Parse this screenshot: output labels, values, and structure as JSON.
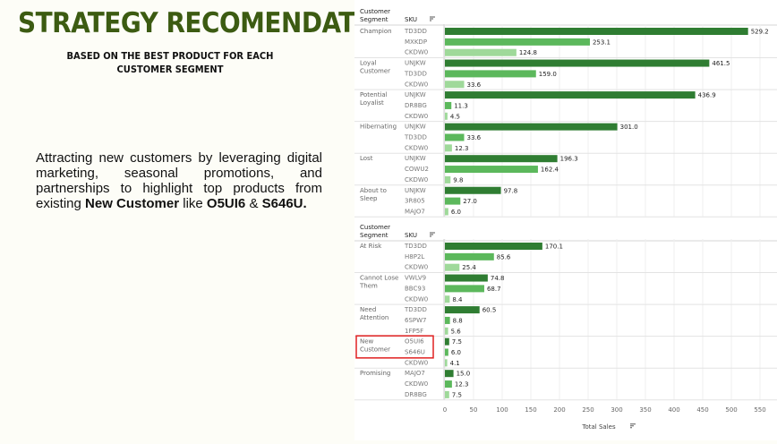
{
  "header": {
    "title": "STRATEGY RECOMENDATION",
    "subtitle_line1": "Based On the best product for each",
    "subtitle_line2": "Customer Segment"
  },
  "description": {
    "intro": "Attracting new customers by leveraging digital marketing, seasonal promotions, and partnerships to highlight top products from existing",
    "segment": "New Customer",
    "middle": "like",
    "sku1": "O5UI6",
    "amp": "&",
    "sku2": "S646U."
  },
  "colors": {
    "dark_bar": "#2f7d32",
    "mid_bar": "#5cb85c",
    "light_bar": "#9fd99a",
    "highlight": "#e02020",
    "title_green": "#3c5b12"
  },
  "chart_data": [
    {
      "type": "bar",
      "orientation": "horizontal",
      "header_segment": "Customer Segment",
      "header_sku": "SKU",
      "groups": [
        {
          "segment": "Champion",
          "rows": [
            {
              "sku": "TD3DD",
              "value": 529.2
            },
            {
              "sku": "MXKDP",
              "value": 253.1
            },
            {
              "sku": "CKDW0",
              "value": 124.8
            }
          ]
        },
        {
          "segment": "Loyal Customer",
          "rows": [
            {
              "sku": "UNJKW",
              "value": 461.5
            },
            {
              "sku": "TD3DD",
              "value": 159.0
            },
            {
              "sku": "CKDW0",
              "value": 33.6
            }
          ]
        },
        {
          "segment": "Potential Loyalist",
          "rows": [
            {
              "sku": "UNJKW",
              "value": 436.9
            },
            {
              "sku": "DR8BG",
              "value": 11.3
            },
            {
              "sku": "CKDW0",
              "value": 4.5
            }
          ]
        },
        {
          "segment": "Hibernating",
          "rows": [
            {
              "sku": "UNJKW",
              "value": 301.0
            },
            {
              "sku": "TD3DD",
              "value": 33.6
            },
            {
              "sku": "CKDW0",
              "value": 12.3
            }
          ]
        },
        {
          "segment": "Lost",
          "rows": [
            {
              "sku": "UNJKW",
              "value": 196.3
            },
            {
              "sku": "COWU2",
              "value": 162.4
            },
            {
              "sku": "CKDW0",
              "value": 9.8
            }
          ]
        },
        {
          "segment": "About to Sleep",
          "rows": [
            {
              "sku": "UNJKW",
              "value": 97.8
            },
            {
              "sku": "3R805",
              "value": 27.0
            },
            {
              "sku": "MAJO7",
              "value": 6.0
            }
          ]
        }
      ]
    },
    {
      "type": "bar",
      "orientation": "horizontal",
      "header_segment": "Customer Segment",
      "header_sku": "SKU",
      "xlabel": "Total Sales",
      "xlim": [
        0,
        550
      ],
      "xticks": [
        0,
        50,
        100,
        150,
        200,
        250,
        300,
        350,
        400,
        450,
        500,
        550
      ],
      "highlighted_segment": "New Customer",
      "groups": [
        {
          "segment": "At Risk",
          "rows": [
            {
              "sku": "TD3DD",
              "value": 170.1
            },
            {
              "sku": "H8P2L",
              "value": 85.6
            },
            {
              "sku": "CKDW0",
              "value": 25.4
            }
          ]
        },
        {
          "segment": "Cannot Lose Them",
          "rows": [
            {
              "sku": "VWLV9",
              "value": 74.8
            },
            {
              "sku": "BBC93",
              "value": 68.7
            },
            {
              "sku": "CKDW0",
              "value": 8.4
            }
          ]
        },
        {
          "segment": "Need Attention",
          "rows": [
            {
              "sku": "TD3DD",
              "value": 60.5
            },
            {
              "sku": "6SPW7",
              "value": 8.8
            },
            {
              "sku": "1FP5F",
              "value": 5.6
            }
          ]
        },
        {
          "segment": "New Customer",
          "rows": [
            {
              "sku": "O5UI6",
              "value": 7.5
            },
            {
              "sku": "S646U",
              "value": 6.0
            },
            {
              "sku": "CKDW0",
              "value": 4.1
            }
          ]
        },
        {
          "segment": "Promising",
          "rows": [
            {
              "sku": "MAJO7",
              "value": 15.0
            },
            {
              "sku": "CKDW0",
              "value": 12.3
            },
            {
              "sku": "DR8BG",
              "value": 7.5
            }
          ]
        }
      ]
    }
  ]
}
